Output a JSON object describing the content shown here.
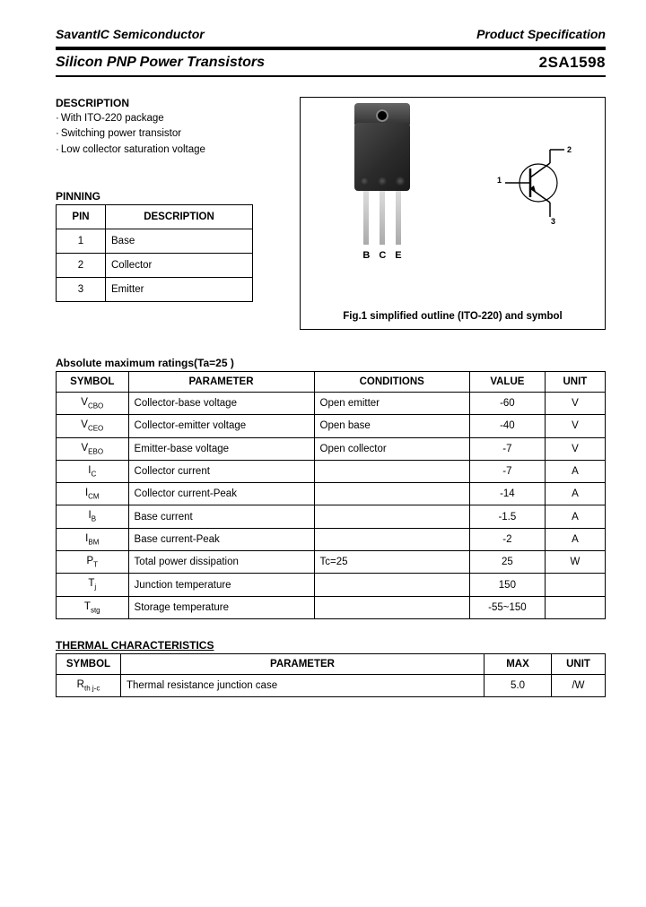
{
  "header": {
    "company": "SavantIC Semiconductor",
    "doc_type": "Product Specification"
  },
  "title": {
    "category": "Silicon PNP Power Transistors",
    "part": "2SA1598"
  },
  "description": {
    "heading": "DESCRIPTION",
    "items": [
      "With ITO-220 package",
      "Switching power transistor",
      "Low collector saturation voltage"
    ]
  },
  "pinning": {
    "heading": "PINNING",
    "col_pin": "PIN",
    "col_desc": "DESCRIPTION",
    "rows": [
      {
        "pin": "1",
        "desc": "Base"
      },
      {
        "pin": "2",
        "desc": "Collector"
      },
      {
        "pin": "3",
        "desc": "Emitter"
      }
    ]
  },
  "figure": {
    "bce": {
      "b": "B",
      "c": "C",
      "e": "E"
    },
    "sym_pins": {
      "p1": "1",
      "p2": "2",
      "p3": "3"
    },
    "caption": "Fig.1 simplified outline (ITO-220) and symbol"
  },
  "ratings": {
    "heading": "Absolute maximum ratings(Ta=25 )",
    "cols": {
      "sym": "SYMBOL",
      "param": "PARAMETER",
      "cond": "CONDITIONS",
      "val": "VALUE",
      "unit": "UNIT"
    },
    "rows": [
      {
        "sym": "V",
        "sub": "CBO",
        "param": "Collector-base voltage",
        "cond": "Open emitter",
        "val": "-60",
        "unit": "V"
      },
      {
        "sym": "V",
        "sub": "CEO",
        "param": "Collector-emitter voltage",
        "cond": "Open base",
        "val": "-40",
        "unit": "V"
      },
      {
        "sym": "V",
        "sub": "EBO",
        "param": "Emitter-base voltage",
        "cond": "Open collector",
        "val": "-7",
        "unit": "V"
      },
      {
        "sym": "I",
        "sub": "C",
        "param": "Collector current",
        "cond": "",
        "val": "-7",
        "unit": "A"
      },
      {
        "sym": "I",
        "sub": "CM",
        "param": "Collector current-Peak",
        "cond": "",
        "val": "-14",
        "unit": "A"
      },
      {
        "sym": "I",
        "sub": "B",
        "param": "Base current",
        "cond": "",
        "val": "-1.5",
        "unit": "A"
      },
      {
        "sym": "I",
        "sub": "BM",
        "param": "Base current-Peak",
        "cond": "",
        "val": "-2",
        "unit": "A"
      },
      {
        "sym": "P",
        "sub": "T",
        "param": "Total power dissipation",
        "cond": "Tc=25 ",
        "val": "25",
        "unit": "W"
      },
      {
        "sym": "T",
        "sub": "j",
        "param": "Junction temperature",
        "cond": "",
        "val": "150",
        "unit": " "
      },
      {
        "sym": "T",
        "sub": "stg",
        "param": "Storage temperature",
        "cond": "",
        "val": "-55~150",
        "unit": " "
      }
    ]
  },
  "thermal": {
    "heading": "THERMAL CHARACTERISTICS",
    "cols": {
      "sym": "SYMBOL",
      "param": "PARAMETER",
      "max": "MAX",
      "unit": "UNIT"
    },
    "rows": [
      {
        "sym": "R",
        "sub": "th j-c",
        "param": "Thermal resistance junction case",
        "max": "5.0",
        "unit": " /W"
      }
    ]
  }
}
